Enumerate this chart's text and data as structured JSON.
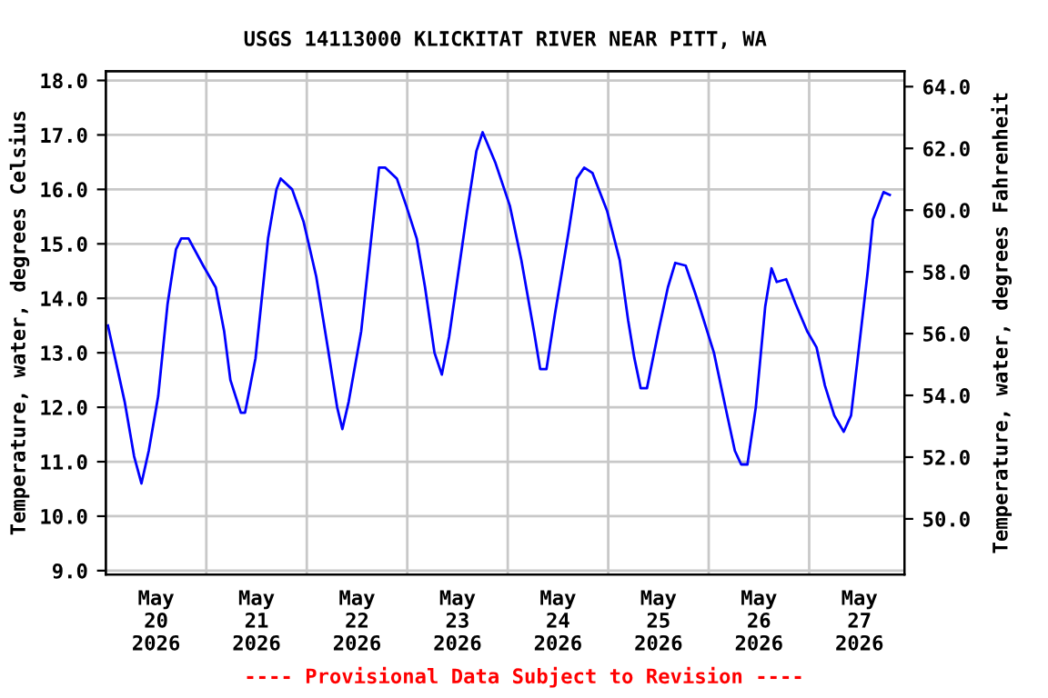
{
  "chart_data": {
    "type": "line",
    "title": "USGS 14113000 KLICKITAT RIVER NEAR PITT, WA",
    "ylabel": "Temperature, water, degrees Celsius",
    "y2label": "Temperature, water, degrees Fahrenheit",
    "annotations": [
      "---- Provisional Data Subject to Revision ----"
    ],
    "x": [
      "2026-05-20T00:30",
      "2026-05-20T04:30",
      "2026-05-20T06:45",
      "2026-05-20T08:30",
      "2026-05-20T10:15",
      "2026-05-20T12:30",
      "2026-05-20T14:45",
      "2026-05-20T16:45",
      "2026-05-20T18:00",
      "2026-05-20T19:45",
      "2026-05-20T23:15",
      "2026-05-21T02:15",
      "2026-05-21T04:15",
      "2026-05-21T05:45",
      "2026-05-21T08:15",
      "2026-05-21T09:15",
      "2026-05-21T11:45",
      "2026-05-21T13:15",
      "2026-05-21T14:45",
      "2026-05-21T16:45",
      "2026-05-21T17:45",
      "2026-05-21T20:30",
      "2026-05-21T23:15",
      "2026-05-22T02:15",
      "2026-05-22T05:00",
      "2026-05-22T07:15",
      "2026-05-22T08:30",
      "2026-05-22T10:00",
      "2026-05-22T13:00",
      "2026-05-22T15:15",
      "2026-05-22T17:15",
      "2026-05-22T18:45",
      "2026-05-22T21:30",
      "2026-05-22T23:45",
      "2026-05-23T02:15",
      "2026-05-23T04:15",
      "2026-05-23T06:30",
      "2026-05-23T08:15",
      "2026-05-23T10:00",
      "2026-05-23T12:15",
      "2026-05-23T14:30",
      "2026-05-23T16:30",
      "2026-05-23T18:00",
      "2026-05-23T21:00",
      "2026-05-24T00:30",
      "2026-05-24T03:15",
      "2026-05-24T06:15",
      "2026-05-24T07:45",
      "2026-05-24T09:15",
      "2026-05-24T11:15",
      "2026-05-24T14:30",
      "2026-05-24T16:30",
      "2026-05-24T18:15",
      "2026-05-24T20:15",
      "2026-05-24T23:45",
      "2026-05-25T02:45",
      "2026-05-25T04:45",
      "2026-05-25T06:15",
      "2026-05-25T07:45",
      "2026-05-25T09:15",
      "2026-05-25T12:00",
      "2026-05-25T14:15",
      "2026-05-25T16:00",
      "2026-05-25T18:30",
      "2026-05-25T20:45",
      "2026-05-25T22:00",
      "2026-05-26T01:15",
      "2026-05-26T04:00",
      "2026-05-26T06:15",
      "2026-05-26T07:45",
      "2026-05-26T09:15",
      "2026-05-26T11:15",
      "2026-05-26T13:30",
      "2026-05-26T15:00",
      "2026-05-26T16:15",
      "2026-05-26T18:30",
      "2026-05-26T20:45",
      "2026-05-26T23:30",
      "2026-05-27T01:45",
      "2026-05-27T03:45",
      "2026-05-27T06:00",
      "2026-05-27T08:15",
      "2026-05-27T10:00",
      "2026-05-27T11:45",
      "2026-05-27T14:00",
      "2026-05-27T15:15",
      "2026-05-27T17:45",
      "2026-05-27T19:15"
    ],
    "series": [
      {
        "color": "#0000ff",
        "values": [
          13.5,
          12.1,
          11.1,
          10.6,
          11.2,
          12.2,
          13.9,
          14.9,
          15.1,
          15.1,
          14.6,
          14.2,
          13.4,
          12.5,
          11.9,
          11.9,
          12.9,
          14.0,
          15.1,
          16.0,
          16.2,
          16.0,
          15.4,
          14.4,
          13.1,
          12.0,
          11.6,
          12.1,
          13.4,
          15.0,
          16.4,
          16.4,
          16.2,
          15.7,
          15.1,
          14.2,
          13.0,
          12.6,
          13.3,
          14.5,
          15.7,
          16.7,
          17.05,
          16.5,
          15.7,
          14.7,
          13.4,
          12.7,
          12.7,
          13.7,
          15.2,
          16.2,
          16.4,
          16.3,
          15.6,
          14.7,
          13.6,
          12.9,
          12.35,
          12.35,
          13.4,
          14.2,
          14.65,
          14.6,
          14.1,
          13.8,
          13.0,
          12.0,
          11.2,
          10.95,
          10.95,
          12.0,
          13.85,
          14.55,
          14.3,
          14.35,
          13.9,
          13.4,
          13.1,
          12.4,
          11.85,
          11.55,
          11.85,
          13.0,
          14.5,
          15.45,
          15.95,
          15.9
        ]
      }
    ],
    "xlim": [
      "2026-05-20T00:00",
      "2026-05-27T22:45"
    ],
    "xticks": [
      {
        "value": "2026-05-20T12:00",
        "label": "May\n20\n2026"
      },
      {
        "value": "2026-05-21T00:00",
        "label": null
      },
      {
        "value": "2026-05-21T12:00",
        "label": "May\n21\n2026"
      },
      {
        "value": "2026-05-22T00:00",
        "label": null
      },
      {
        "value": "2026-05-22T12:00",
        "label": "May\n22\n2026"
      },
      {
        "value": "2026-05-23T00:00",
        "label": null
      },
      {
        "value": "2026-05-23T12:00",
        "label": "May\n23\n2026"
      },
      {
        "value": "2026-05-24T00:00",
        "label": null
      },
      {
        "value": "2026-05-24T12:00",
        "label": "May\n24\n2026"
      },
      {
        "value": "2026-05-25T00:00",
        "label": null
      },
      {
        "value": "2026-05-25T12:00",
        "label": "May\n25\n2026"
      },
      {
        "value": "2026-05-26T00:00",
        "label": null
      },
      {
        "value": "2026-05-26T12:00",
        "label": "May\n26\n2026"
      },
      {
        "value": "2026-05-27T00:00",
        "label": null
      },
      {
        "value": "2026-05-27T12:00",
        "label": "May\n27\n2026"
      }
    ],
    "ylim": [
      8.93,
      18.17
    ],
    "yticks": [
      {
        "value": 9,
        "label": "9.0"
      },
      {
        "value": 10,
        "label": "10.0"
      },
      {
        "value": 11,
        "label": "11.0"
      },
      {
        "value": 12,
        "label": "12.0"
      },
      {
        "value": 13,
        "label": "13.0"
      },
      {
        "value": 14,
        "label": "14.0"
      },
      {
        "value": 15,
        "label": "15.0"
      },
      {
        "value": 16,
        "label": "16.0"
      },
      {
        "value": 17,
        "label": "17.0"
      },
      {
        "value": 18,
        "label": "18.0"
      }
    ],
    "y2lim": [
      48.2,
      64.5
    ],
    "y2ticks": [
      {
        "value": 50,
        "label": "50.0"
      },
      {
        "value": 52,
        "label": "52.0"
      },
      {
        "value": 54,
        "label": "54.0"
      },
      {
        "value": 56,
        "label": "56.0"
      },
      {
        "value": 58,
        "label": "58.0"
      },
      {
        "value": 60,
        "label": "60.0"
      },
      {
        "value": 62,
        "label": "62.0"
      },
      {
        "value": 64,
        "label": "64.0"
      }
    ],
    "grid": true,
    "marker": "none",
    "line_style": "solid"
  }
}
